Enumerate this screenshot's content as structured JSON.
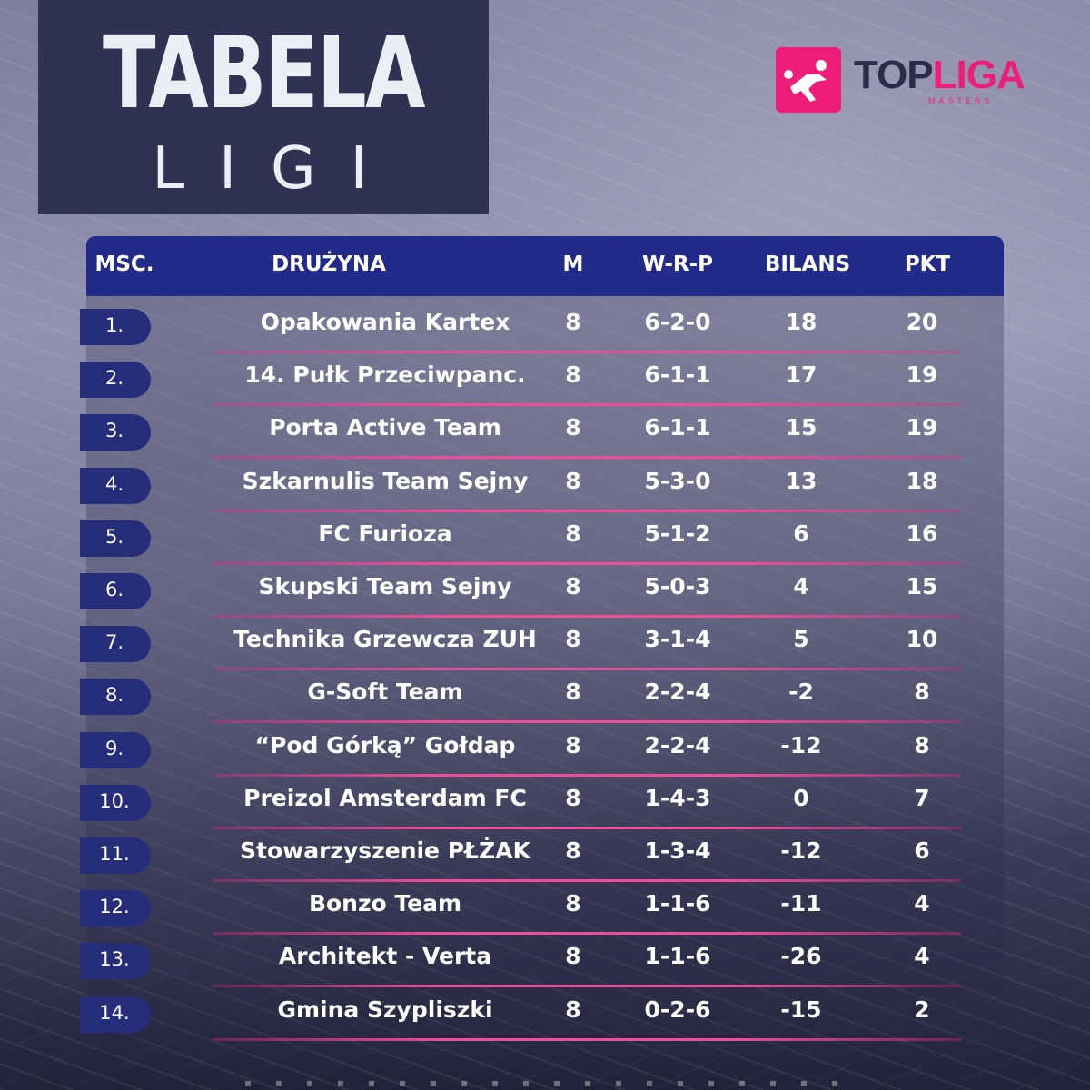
{
  "title": {
    "main": "TABELA",
    "sub": "LIGI"
  },
  "logo": {
    "name_part1": "TOP",
    "name_part2": "LIGA",
    "sub": "MASTERS",
    "accent": "#ee1e78"
  },
  "colors": {
    "header_bg": "#222a8a",
    "rank_bg": "#262d7a",
    "separator": "#ee4d97",
    "title_bg": "#303252"
  },
  "table": {
    "headers": {
      "pos": "MSC.",
      "team": "DRUŻYNA",
      "m": "M",
      "wrp": "W-R-P",
      "bilans": "BILANS",
      "pkt": "PKT"
    },
    "rows": [
      {
        "pos": "1.",
        "team": "Opakowania Kartex",
        "m": "8",
        "wrp": "6-2-0",
        "bilans": "18",
        "pkt": "20"
      },
      {
        "pos": "2.",
        "team": "14. Pułk Przeciwpanc.",
        "m": "8",
        "wrp": "6-1-1",
        "bilans": "17",
        "pkt": "19"
      },
      {
        "pos": "3.",
        "team": "Porta Active Team",
        "m": "8",
        "wrp": "6-1-1",
        "bilans": "15",
        "pkt": "19"
      },
      {
        "pos": "4.",
        "team": "Szkarnulis Team Sejny",
        "m": "8",
        "wrp": "5-3-0",
        "bilans": "13",
        "pkt": "18"
      },
      {
        "pos": "5.",
        "team": "FC Furioza",
        "m": "8",
        "wrp": "5-1-2",
        "bilans": "6",
        "pkt": "16"
      },
      {
        "pos": "6.",
        "team": "Skupski Team Sejny",
        "m": "8",
        "wrp": "5-0-3",
        "bilans": "4",
        "pkt": "15"
      },
      {
        "pos": "7.",
        "team": "Technika Grzewcza ZUH",
        "m": "8",
        "wrp": "3-1-4",
        "bilans": "5",
        "pkt": "10"
      },
      {
        "pos": "8.",
        "team": "G-Soft Team",
        "m": "8",
        "wrp": "2-2-4",
        "bilans": "-2",
        "pkt": "8"
      },
      {
        "pos": "9.",
        "team": "“Pod Górką” Gołdap",
        "m": "8",
        "wrp": "2-2-4",
        "bilans": "-12",
        "pkt": "8"
      },
      {
        "pos": "10.",
        "team": "Preizol Amsterdam FC",
        "m": "8",
        "wrp": "1-4-3",
        "bilans": "0",
        "pkt": "7"
      },
      {
        "pos": "11.",
        "team": "Stowarzyszenie PŁŻAK",
        "m": "8",
        "wrp": "1-3-4",
        "bilans": "-12",
        "pkt": "6"
      },
      {
        "pos": "12.",
        "team": "Bonzo Team",
        "m": "8",
        "wrp": "1-1-6",
        "bilans": "-11",
        "pkt": "4"
      },
      {
        "pos": "13.",
        "team": "Architekt - Verta",
        "m": "8",
        "wrp": "1-1-6",
        "bilans": "-26",
        "pkt": "4"
      },
      {
        "pos": "14.",
        "team": "Gmina Szypliszki",
        "m": "8",
        "wrp": "0-2-6",
        "bilans": "-15",
        "pkt": "2"
      }
    ]
  }
}
